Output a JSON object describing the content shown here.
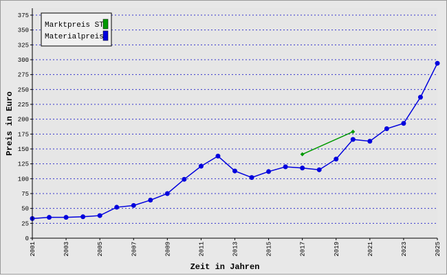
{
  "chart_data": {
    "type": "line",
    "x_label": "Zeit in Jahren",
    "y_label": "Preis in Euro",
    "xlim": [
      2001,
      2025
    ],
    "xticks": [
      2001,
      2003,
      2005,
      2007,
      2009,
      2011,
      2013,
      2015,
      2017,
      2019,
      2021,
      2023,
      2025
    ],
    "ylim": [
      0,
      375
    ],
    "yticks": [
      0,
      25,
      50,
      75,
      100,
      125,
      150,
      175,
      200,
      225,
      250,
      275,
      300,
      325,
      350,
      375
    ],
    "grid": true,
    "legend": "top-left",
    "series": [
      {
        "name": "Marktpreis ST",
        "color": "#009900",
        "marker": "diamond",
        "x": [
          2017,
          2020
        ],
        "values": [
          141,
          179
        ]
      },
      {
        "name": "Materialpreis",
        "color": "#0000dd",
        "marker": "circle",
        "x": [
          2001,
          2002,
          2003,
          2004,
          2005,
          2006,
          2007,
          2008,
          2009,
          2010,
          2011,
          2012,
          2013,
          2014,
          2015,
          2016,
          2017,
          2018,
          2019,
          2020,
          2021,
          2022,
          2023,
          2024,
          2025
        ],
        "values": [
          33,
          35,
          35,
          36,
          38,
          52,
          55,
          64,
          75,
          99,
          121,
          138,
          113,
          102,
          112,
          120,
          118,
          115,
          133,
          166,
          163,
          184,
          193,
          237,
          294
        ]
      }
    ]
  }
}
